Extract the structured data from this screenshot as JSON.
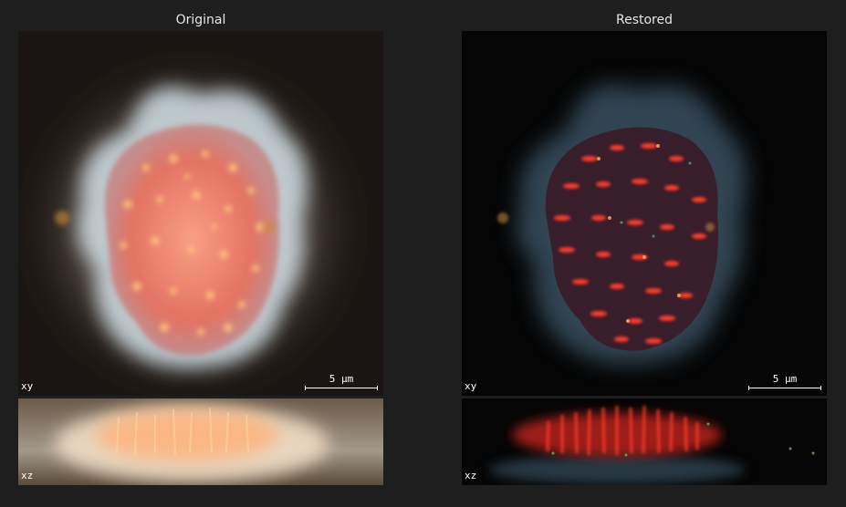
{
  "panels": {
    "original": {
      "title": "Original",
      "xy_label": "xy",
      "xz_label": "xz",
      "scale_bar": "5 µm"
    },
    "restored": {
      "title": "Restored",
      "xy_label": "xy",
      "xz_label": "xz",
      "scale_bar": "5 µm"
    }
  },
  "colors": {
    "background": "#1e1e1e",
    "nucleus_red": "#ff3a2a",
    "membrane_blue": "#6f8fa8",
    "glow_original": "#f3d8c4"
  }
}
